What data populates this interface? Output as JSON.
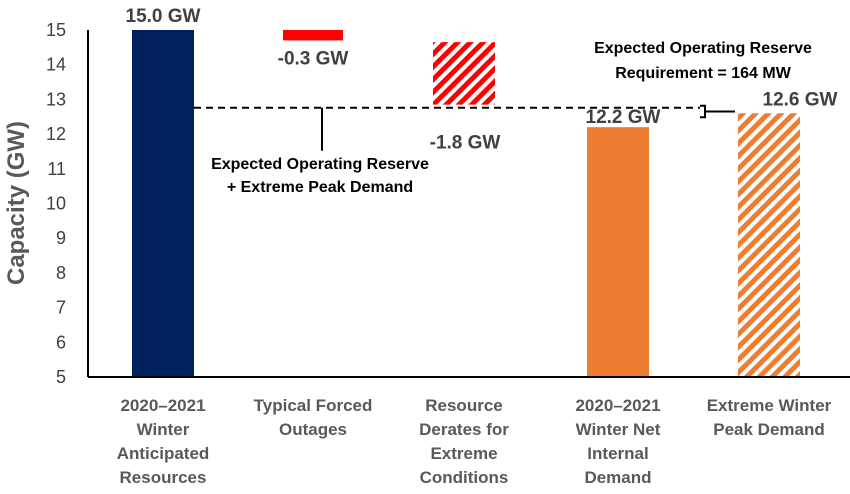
{
  "chart_data": {
    "type": "bar",
    "subtype": "waterfall",
    "ylabel": "Capacity (GW)",
    "ylim": [
      5,
      15
    ],
    "yticks": [
      5,
      6,
      7,
      8,
      9,
      10,
      11,
      12,
      13,
      14,
      15
    ],
    "grid": false,
    "bars": [
      {
        "category": [
          "2020–2021",
          "Winter",
          "Anticipated",
          "Resources"
        ],
        "start": 5.0,
        "end": 15.0,
        "label": "15.0 GW",
        "color": "#002060",
        "pattern": "solid"
      },
      {
        "category": [
          "Typical Forced",
          "Outages"
        ],
        "start": 15.0,
        "end": 14.7,
        "label": "-0.3 GW",
        "color": "#ff0000",
        "pattern": "solid"
      },
      {
        "category": [
          "Resource",
          "Derates for",
          "Extreme",
          "Conditions"
        ],
        "start": 14.65,
        "end": 12.85,
        "label": "-1.8 GW",
        "color": "#ff0000",
        "pattern": "hatched"
      },
      {
        "category": [
          "2020–2021",
          "Winter Net",
          "Internal",
          "Demand"
        ],
        "start": 5.0,
        "end": 12.2,
        "label": "12.2 GW",
        "color": "#ed7d31",
        "pattern": "solid"
      },
      {
        "category": [
          "Extreme Winter",
          "Peak Demand"
        ],
        "start": 5.0,
        "end": 12.6,
        "label": "12.6 GW",
        "color": "#ed7d31",
        "pattern": "hatched"
      }
    ],
    "reference_line": {
      "value": 12.76,
      "style": "dashed"
    },
    "annotations": [
      {
        "lines": [
          "Expected Operating Reserve",
          "+ Extreme Peak Demand"
        ]
      },
      {
        "lines": [
          "Expected Operating Reserve",
          "Requirement = 164 MW"
        ]
      }
    ]
  }
}
